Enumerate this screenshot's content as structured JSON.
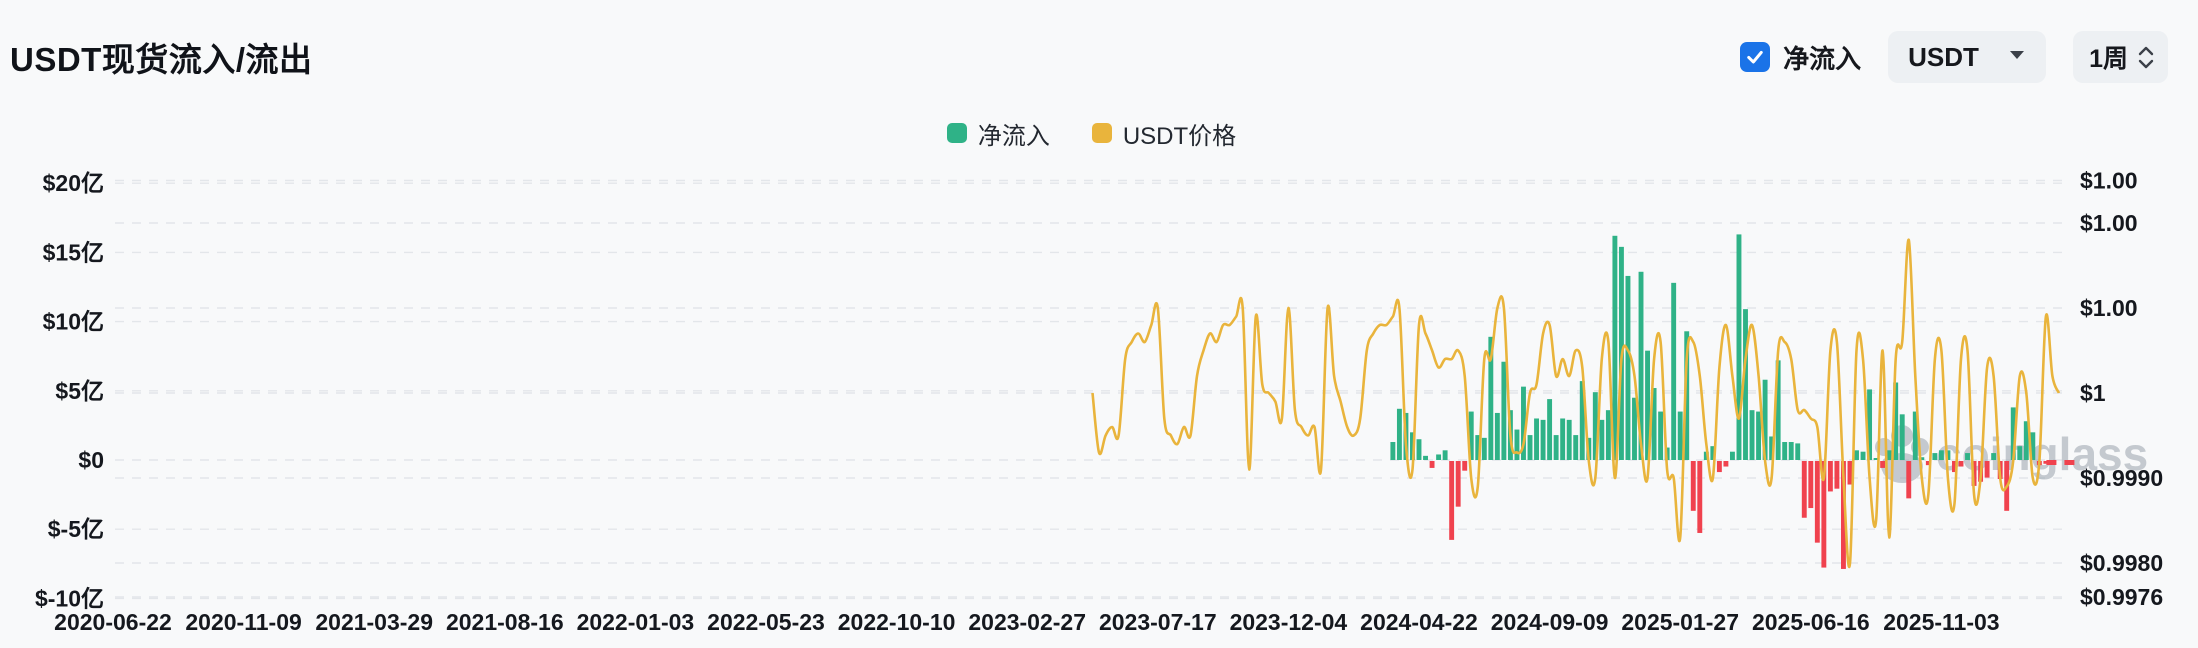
{
  "page": {
    "background": "#f8f9fa",
    "accent_blue": "#1a73e8"
  },
  "header": {
    "title": "USDT现货流入/流出",
    "controls": {
      "netflow_checkbox_label": "净流入",
      "netflow_checked": true,
      "symbol_select_value": "USDT",
      "interval_stepper_value": "1周"
    }
  },
  "legend": [
    {
      "label": "净流入",
      "color": "#2fb287"
    },
    {
      "label": "USDT价格",
      "color": "#e9b43c"
    }
  ],
  "watermark": {
    "text": "coinglass",
    "icon": "paw-icon",
    "color": "#9aa3ad"
  },
  "chart_data": {
    "type": "bar+line",
    "title": "USDT现货流入/流出",
    "x_axis": {
      "start_date": "2020-06-22",
      "interval": "1 week",
      "tick_every_weeks": 20,
      "tick_labels": [
        "2020-06-22",
        "2020-11-09",
        "2021-03-29",
        "2021-08-16",
        "2022-01-03",
        "2022-05-23",
        "2022-10-10",
        "2023-02-27",
        "2023-07-17",
        "2023-12-04",
        "2024-04-22",
        "2024-09-09",
        "2025-01-27",
        "2025-06-16",
        "2025-11-03"
      ]
    },
    "left_axis": {
      "unit": "亿 USD",
      "ticks": [
        {
          "label": "$20亿",
          "value": 20
        },
        {
          "label": "$15亿",
          "value": 15
        },
        {
          "label": "$10亿",
          "value": 10
        },
        {
          "label": "$5亿",
          "value": 5
        },
        {
          "label": "$0",
          "value": 0
        },
        {
          "label": "$-5亿",
          "value": -5
        },
        {
          "label": "$-10亿",
          "value": -10
        }
      ]
    },
    "right_axis": {
      "unit": "USD",
      "ticks": [
        {
          "label": "$1.00",
          "value": 1.0025
        },
        {
          "label": "$1.00",
          "value": 1.002
        },
        {
          "label": "$1.00",
          "value": 1.001
        },
        {
          "label": "$1",
          "value": 1.0
        },
        {
          "label": "$0.9990",
          "value": 0.999
        },
        {
          "label": "$0.9980",
          "value": 0.998
        },
        {
          "label": "$0.9976",
          "value": 0.9976
        }
      ]
    },
    "series": [
      {
        "name": "净流入",
        "type": "bar",
        "unit": "亿USD",
        "color_positive": "#2fb287",
        "color_negative": "#f0424e",
        "start_week": 196,
        "start_date": "2024-03-25",
        "last_point_dashed": true,
        "values": [
          1.3,
          3.7,
          3.4,
          2.0,
          1.5,
          0.3,
          -0.5,
          0.4,
          0.7,
          -5.7,
          -3.3,
          -0.7,
          3.5,
          1.8,
          1.6,
          8.9,
          3.4,
          7.1,
          3.6,
          2.2,
          5.3,
          1.8,
          3.0,
          2.9,
          4.4,
          1.8,
          3.0,
          2.9,
          1.8,
          5.7,
          1.6,
          4.9,
          2.9,
          3.6,
          16.2,
          15.4,
          13.3,
          4.5,
          13.6,
          7.9,
          5.2,
          3.5,
          0.9,
          12.8,
          3.5,
          9.3,
          -3.6,
          -5.2,
          0.6,
          1.0,
          -0.8,
          -0.4,
          0.6,
          16.3,
          10.9,
          3.6,
          3.5,
          5.8,
          1.7,
          7.2,
          1.3,
          1.3,
          1.2,
          -4.1,
          -3.4,
          -5.9,
          -7.7,
          -2.2,
          -2.0,
          -7.8,
          -1.7,
          0.7,
          0.6,
          5.1,
          0.1,
          -0.5,
          0.7,
          5.6,
          3.3,
          -2.7,
          3.5,
          0.2,
          -0.3,
          0.5,
          0.7,
          0.7,
          -0.8,
          -0.4,
          0.5,
          -1.8,
          -1.5,
          -1.2,
          0.5,
          -1.3,
          -3.6,
          3.8,
          1.0,
          2.8,
          2.0,
          -0.3,
          -0.2,
          -0.2
        ]
      },
      {
        "name": "USDT价格",
        "type": "line",
        "unit": "USD",
        "color": "#e9b43c",
        "start_week": 150,
        "start_date": "2023-05-08",
        "values": [
          1.0,
          0.9993,
          0.9995,
          0.9996,
          0.9995,
          1.0004,
          1.0006,
          1.0007,
          1.0006,
          1.0008,
          1.001,
          0.9997,
          0.9995,
          0.9994,
          0.9996,
          0.9995,
          1.0002,
          1.0005,
          1.0007,
          1.0006,
          1.0008,
          1.0008,
          1.0009,
          1.001,
          0.9991,
          1.0009,
          1.0001,
          1.0,
          0.9999,
          0.9997,
          1.001,
          0.9998,
          0.9996,
          0.9995,
          0.9996,
          0.9991,
          1.001,
          1.0002,
          0.9999,
          0.9996,
          0.9995,
          0.9997,
          1.0005,
          1.0007,
          1.0008,
          1.0008,
          1.0009,
          1.001,
          0.9994,
          0.9991,
          1.0008,
          1.0007,
          1.0005,
          1.0003,
          1.0004,
          1.0004,
          1.0005,
          1.0002,
          0.999,
          0.9989,
          1.0004,
          1.0004,
          1.001,
          1.001,
          0.9995,
          0.9993,
          0.9994,
          1.0,
          1.0001,
          1.0007,
          1.0008,
          1.0002,
          1.0004,
          1.0002,
          1.0005,
          1.0003,
          0.9992,
          0.999,
          1.0004,
          1.0006,
          0.999,
          1.0004,
          1.0005,
          1.0002,
          0.9994,
          0.999,
          1.0004,
          1.0006,
          0.9991,
          0.999,
          0.9983,
          1.0004,
          1.0006,
          1.0002,
          0.9994,
          0.999,
          1.0003,
          1.0008,
          1.0002,
          0.9997,
          1.0004,
          1.0008,
          1.0002,
          0.9992,
          0.999,
          1.0005,
          1.0006,
          1.0004,
          0.9998,
          0.9998,
          0.9997,
          0.9996,
          0.999,
          1.0005,
          1.0006,
          0.999,
          0.998,
          1.0005,
          1.0004,
          0.999,
          0.9985,
          1.0005,
          0.9983,
          1.0004,
          1.0006,
          1.0018,
          1.0002,
          0.999,
          0.9988,
          1.0004,
          1.0005,
          0.999,
          0.9987,
          1.0004,
          1.0005,
          0.9988,
          0.999,
          1.0003,
          1.0002,
          0.999,
          0.9989,
          0.9992,
          1.0002,
          1.0,
          0.999,
          0.9992,
          1.0009,
          1.0002,
          1.0
        ]
      }
    ],
    "grid": {
      "dashed": true,
      "color": "#e3e6ea"
    }
  }
}
